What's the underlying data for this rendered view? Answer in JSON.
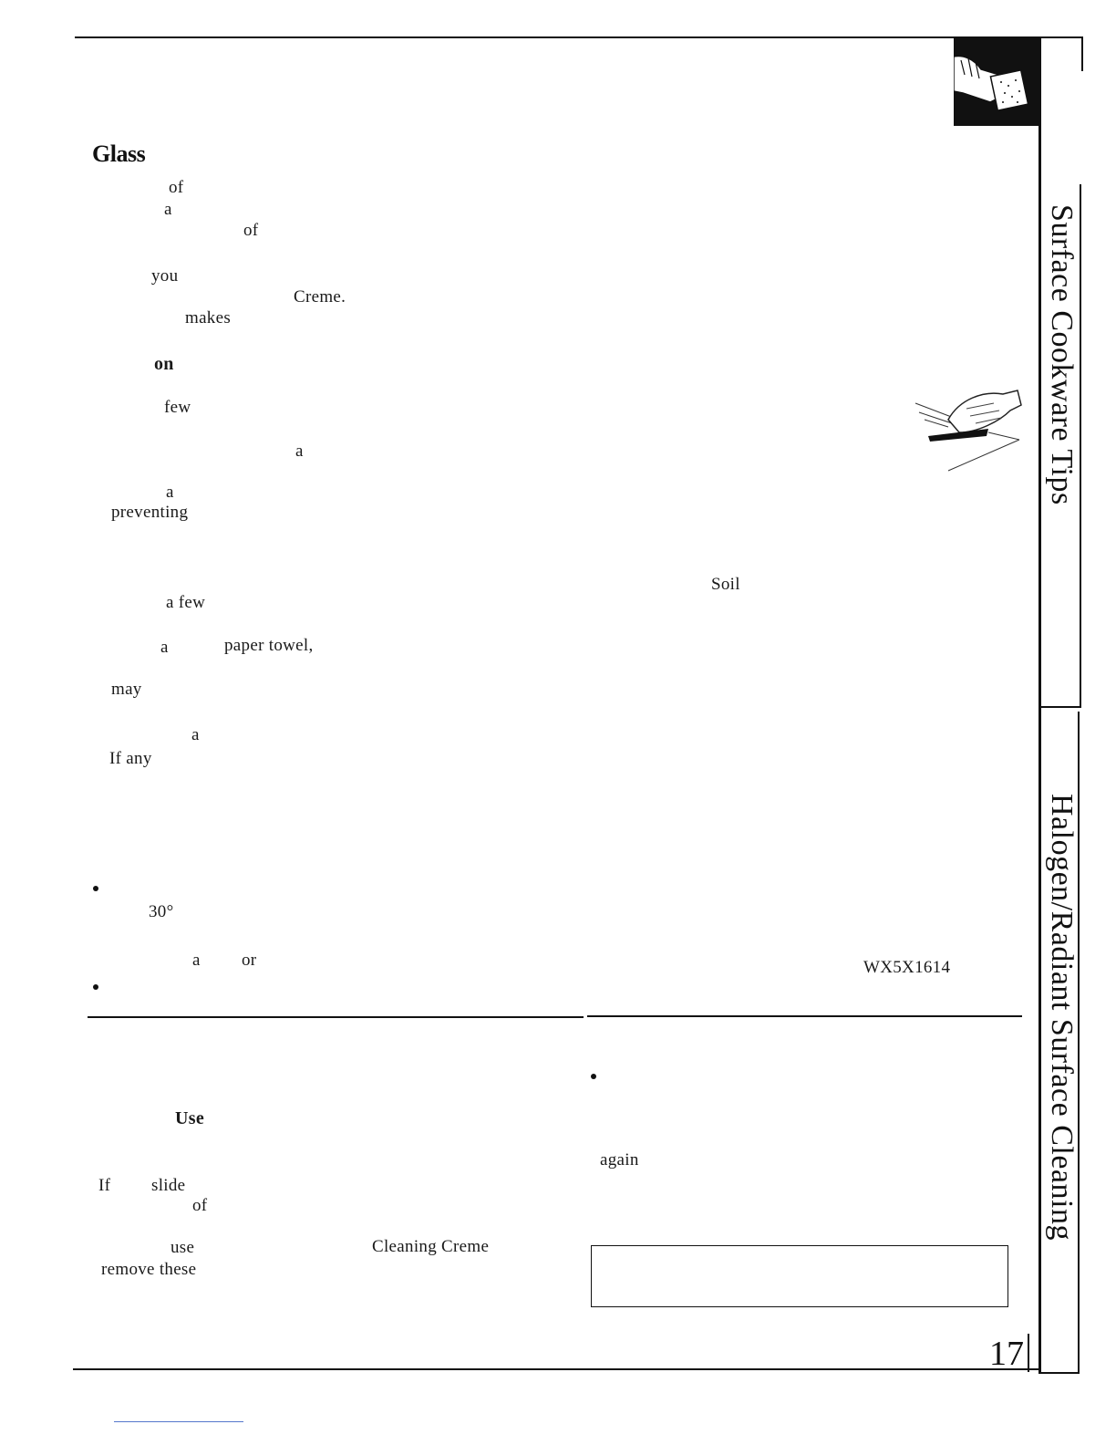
{
  "heading": "Glass",
  "left_column": {
    "w_of_1": "of",
    "w_a_1": "a",
    "w_of_2": "of",
    "w_you": "you",
    "w_creme": "Creme.",
    "w_makes": "makes",
    "w_on": "on",
    "w_few": "few",
    "w_a_2": "a",
    "w_a_3": "a",
    "w_preventing": "preventing",
    "w_afew": "a few",
    "w_a_4": "a",
    "w_papertowel": "paper towel,",
    "w_may": "may",
    "w_a_5": "a",
    "w_ifany": "If any",
    "w_30": "30°",
    "w_a_6": "a",
    "w_or": "or"
  },
  "right_column": {
    "w_soil": "Soil",
    "part_number": "WX5X1614"
  },
  "bottom_left": {
    "w_use": "Use",
    "w_if": "If",
    "w_slide": "slide",
    "w_of": "of",
    "w_use2": "use",
    "w_cleaningcreme": "Cleaning Creme",
    "w_removethese": "remove these"
  },
  "bottom_right": {
    "w_again": "again"
  },
  "side_tabs": {
    "tab1": "Surface Cookware Tips",
    "tab2": "Halogen/Radiant Surface Cleaning"
  },
  "page_number": "17"
}
